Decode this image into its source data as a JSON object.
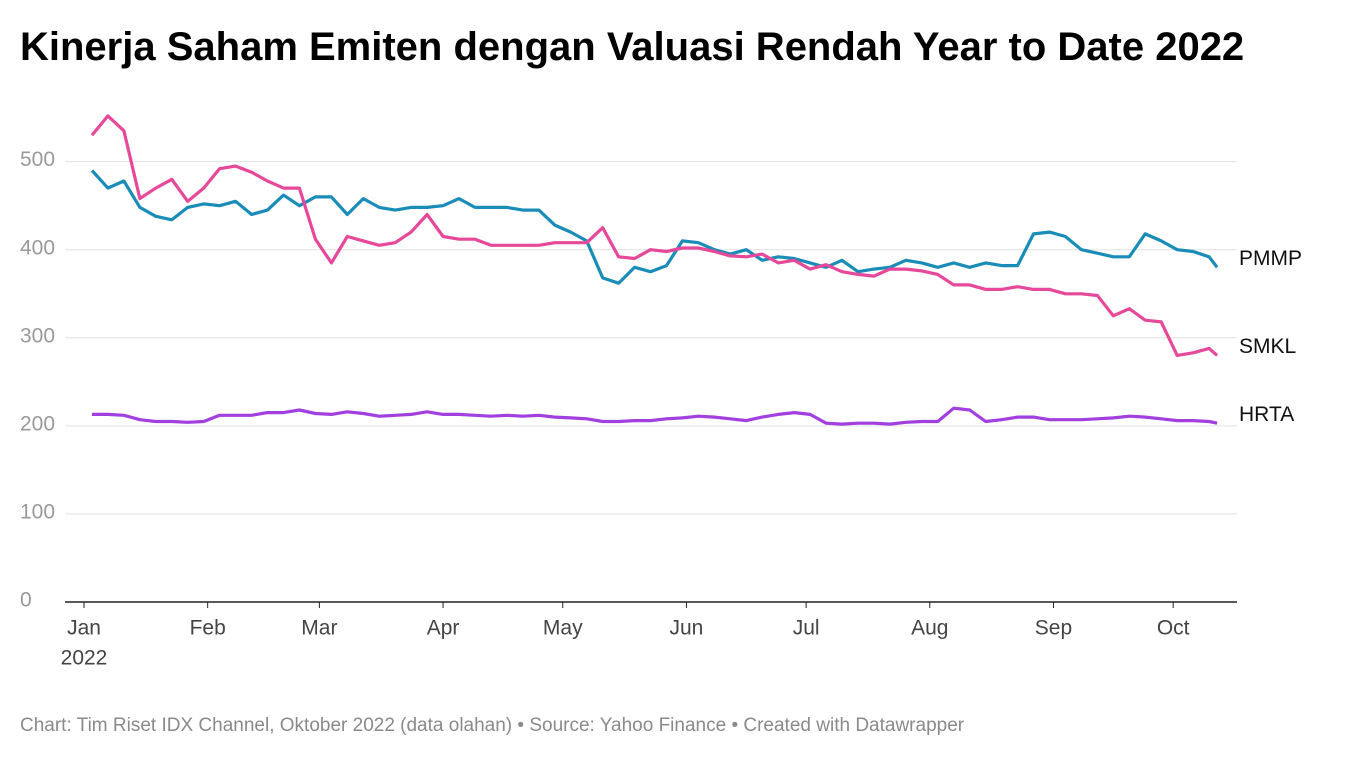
{
  "chart_data": {
    "type": "line",
    "title": "Kinerja Saham Emiten dengan Valuasi Rendah Year to Date 2022",
    "footer": "Chart: Tim Riset IDX Channel, Oktober 2022 (data olahan) • Source: Yahoo Finance • Created with Datawrapper",
    "x_year_label": "2022",
    "x": [
      2,
      6,
      10,
      14,
      18,
      22,
      26,
      30,
      34,
      38,
      42,
      46,
      50,
      54,
      58,
      62,
      66,
      70,
      74,
      78,
      82,
      86,
      90,
      94,
      98,
      102,
      106,
      110,
      114,
      118,
      122,
      126,
      130,
      134,
      138,
      142,
      146,
      150,
      154,
      158,
      162,
      166,
      170,
      174,
      178,
      182,
      186,
      190,
      194,
      198,
      202,
      206,
      210,
      214,
      218,
      222,
      226,
      230,
      234,
      238,
      242,
      246,
      250,
      254,
      258,
      262,
      266,
      270,
      274,
      278,
      282,
      284
    ],
    "xlim": [
      0,
      289
    ],
    "xticks": [
      {
        "value": 0,
        "label": "Jan"
      },
      {
        "value": 31,
        "label": "Feb"
      },
      {
        "value": 59,
        "label": "Mar"
      },
      {
        "value": 90,
        "label": "Apr"
      },
      {
        "value": 120,
        "label": "May"
      },
      {
        "value": 151,
        "label": "Jun"
      },
      {
        "value": 181,
        "label": "Jul"
      },
      {
        "value": 212,
        "label": "Aug"
      },
      {
        "value": 243,
        "label": "Sep"
      },
      {
        "value": 273,
        "label": "Oct"
      }
    ],
    "ylim": [
      0,
      570
    ],
    "yticks": [
      0,
      100,
      200,
      300,
      400,
      500
    ],
    "grid": true,
    "series": [
      {
        "name": "PMMP",
        "color": "#1a8cb8",
        "values": [
          490,
          470,
          478,
          448,
          438,
          434,
          448,
          452,
          450,
          455,
          440,
          445,
          462,
          450,
          460,
          460,
          440,
          458,
          448,
          445,
          448,
          448,
          450,
          458,
          448,
          448,
          448,
          445,
          445,
          428,
          420,
          410,
          368,
          362,
          380,
          375,
          382,
          410,
          408,
          400,
          395,
          400,
          388,
          392,
          390,
          385,
          380,
          388,
          375,
          378,
          380,
          388,
          385,
          380,
          385,
          380,
          385,
          382,
          382,
          418,
          420,
          415,
          400,
          396,
          392,
          392,
          418,
          410,
          400,
          398,
          392,
          380
        ]
      },
      {
        "name": "SMKL",
        "color": "#e6489a",
        "values": [
          530,
          552,
          535,
          458,
          470,
          480,
          455,
          470,
          492,
          495,
          488,
          478,
          470,
          470,
          412,
          385,
          415,
          410,
          405,
          408,
          420,
          440,
          415,
          412,
          412,
          405,
          405,
          405,
          405,
          408,
          408,
          408,
          425,
          392,
          390,
          400,
          398,
          402,
          402,
          398,
          393,
          392,
          395,
          385,
          388,
          378,
          383,
          375,
          372,
          370,
          378,
          378,
          376,
          372,
          360,
          360,
          355,
          355,
          358,
          355,
          355,
          350,
          350,
          348,
          325,
          333,
          320,
          318,
          280,
          283,
          288,
          280
        ]
      },
      {
        "name": "HRTA",
        "color": "#a23fdf",
        "values": [
          213,
          213,
          212,
          207,
          205,
          205,
          204,
          205,
          212,
          212,
          212,
          215,
          215,
          218,
          214,
          213,
          216,
          214,
          211,
          212,
          213,
          216,
          213,
          213,
          212,
          211,
          212,
          211,
          212,
          210,
          209,
          208,
          205,
          205,
          206,
          206,
          208,
          209,
          211,
          210,
          208,
          206,
          210,
          213,
          215,
          213,
          203,
          202,
          203,
          203,
          202,
          204,
          205,
          205,
          220,
          218,
          205,
          207,
          210,
          210,
          207,
          207,
          207,
          208,
          209,
          211,
          210,
          208,
          206,
          206,
          205,
          203
        ]
      }
    ]
  }
}
